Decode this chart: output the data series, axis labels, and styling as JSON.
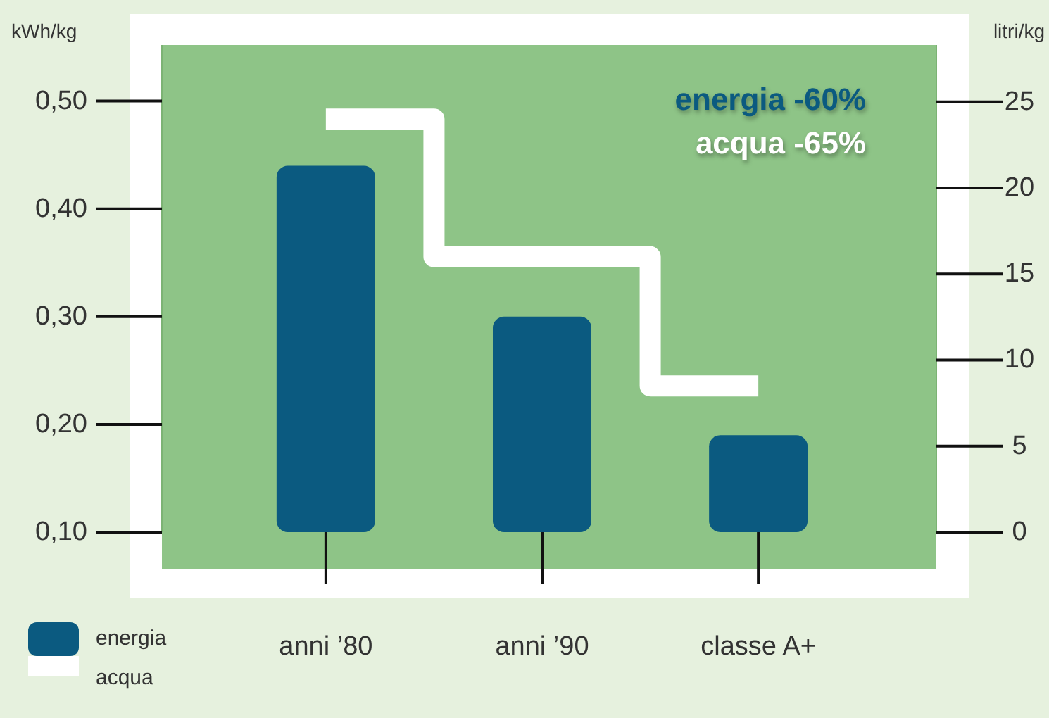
{
  "chart_data": {
    "type": "bar",
    "categories": [
      "anni ’80",
      "anni ’90",
      "classe A+"
    ],
    "ylabel": "kWh/kg",
    "y2label": "litri/kg",
    "ylim": [
      0.1,
      0.552
    ],
    "yticks": [
      {
        "value": 0.1,
        "label": "0,10"
      },
      {
        "value": 0.2,
        "label": "0,20"
      },
      {
        "value": 0.3,
        "label": "0,30"
      },
      {
        "value": 0.4,
        "label": "0,40"
      },
      {
        "value": 0.5,
        "label": "0,50"
      }
    ],
    "y2lim": [
      0,
      28.3
    ],
    "y2ticks": [
      0,
      5,
      10,
      15,
      20,
      25
    ],
    "series": [
      {
        "name": "energia",
        "color": "#0b5a80",
        "values": [
          0.44,
          0.3,
          0.19
        ]
      },
      {
        "name": "acqua",
        "type": "step",
        "axis": "y2",
        "color": "#ffffff",
        "values": [
          24,
          16,
          8.5
        ]
      }
    ],
    "annotations": [
      "energia -60%",
      "acqua -65%"
    ],
    "legend": "bottom left",
    "grid": false
  }
}
